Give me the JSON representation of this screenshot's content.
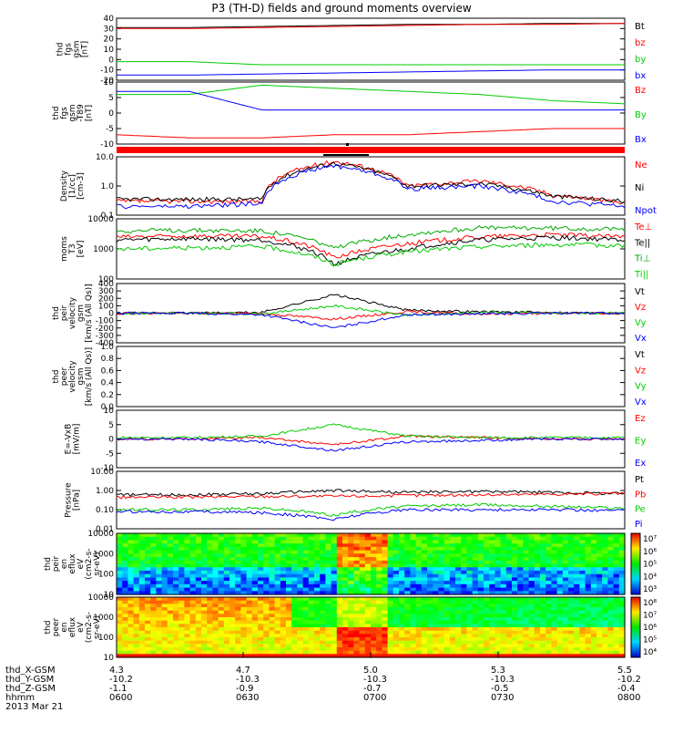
{
  "title": "P3 (TH-D) fields and ground moments overview",
  "colors": {
    "black": "#000000",
    "red": "#ff0000",
    "green": "#00cc00",
    "blue": "#0000ff",
    "darkgreen": "#00aa00"
  },
  "chart_data": [
    {
      "type": "line",
      "ylabel": [
        "thd",
        "fgs",
        "gsm",
        "[nT]"
      ],
      "yticks": [
        "40",
        "30",
        "20",
        "10",
        "0",
        "-10",
        "-20"
      ],
      "legend": [
        "Bt",
        "bz",
        "by",
        "bx"
      ],
      "legend_colors": [
        "#000000",
        "#ff0000",
        "#00cc00",
        "#0000ff"
      ],
      "series": [
        {
          "name": "Bt",
          "values": [
            31,
            31,
            32,
            33,
            34,
            34,
            35,
            35
          ]
        },
        {
          "name": "bz",
          "values": [
            30,
            30,
            31,
            32,
            33,
            34,
            34,
            35
          ]
        },
        {
          "name": "by",
          "values": [
            -2,
            -2,
            -5,
            -5,
            -5,
            -5,
            -5,
            -5
          ]
        },
        {
          "name": "bx",
          "values": [
            -15,
            -15,
            -14,
            -13,
            -12,
            -11,
            -10,
            -10
          ]
        }
      ]
    },
    {
      "type": "line",
      "ylabel": [
        "thd",
        "fgs",
        "gsm",
        "-T89",
        "[nT]"
      ],
      "yticks": [
        "10",
        "5",
        "0",
        "-5",
        "-10"
      ],
      "legend": [
        "Bz",
        "By",
        "Bx"
      ],
      "legend_colors": [
        "#ff0000",
        "#00cc00",
        "#0000ff"
      ],
      "series": [
        {
          "name": "Bz",
          "values": [
            -7,
            -8,
            -8,
            -7,
            -7,
            -6,
            -5,
            -5
          ]
        },
        {
          "name": "By",
          "values": [
            6,
            6,
            9,
            8,
            7,
            6,
            4,
            3
          ]
        },
        {
          "name": "Bx",
          "values": [
            7,
            7,
            1,
            1,
            1,
            1,
            1,
            1
          ]
        }
      ]
    },
    {
      "type": "line",
      "scale": "log",
      "ylabel": [
        "Density",
        "[1/cc]",
        "[cm-3]"
      ],
      "yticks": [
        "10.0",
        "1.0",
        "0.1"
      ],
      "legend": [
        "Ne",
        "Ni",
        "Npot"
      ],
      "legend_colors": [
        "#ff0000",
        "#000000",
        "#0000ff"
      ],
      "series": [
        {
          "name": "Ne",
          "values": [
            0.3,
            0.3,
            0.3,
            7,
            1,
            1.5,
            0.5,
            0.25
          ]
        },
        {
          "name": "Ni",
          "values": [
            0.35,
            0.35,
            0.35,
            6,
            1,
            1.2,
            0.45,
            0.3
          ]
        },
        {
          "name": "Npot",
          "values": [
            0.2,
            0.2,
            0.25,
            5,
            0.8,
            1,
            0.3,
            0.2
          ]
        }
      ]
    },
    {
      "type": "line",
      "scale": "log",
      "ylabel": [
        "moms",
        "T3",
        "[eV]"
      ],
      "yticks": [
        "10000",
        "1000",
        "100"
      ],
      "legend": [
        "Te⊥",
        "Te||",
        "Ti⊥",
        "Ti||"
      ],
      "legend_colors": [
        "#ff0000",
        "#000000",
        "#00aa00",
        "#00cc00"
      ],
      "series": [
        {
          "name": "Te⊥",
          "values": [
            2500,
            2700,
            2600,
            500,
            1500,
            2500,
            3000,
            2500
          ]
        },
        {
          "name": "Te||",
          "values": [
            2000,
            2200,
            2000,
            300,
            1000,
            2000,
            2400,
            2000
          ]
        },
        {
          "name": "Ti⊥",
          "values": [
            4000,
            4200,
            4000,
            1000,
            3000,
            5000,
            5000,
            4500
          ]
        },
        {
          "name": "Ti||",
          "values": [
            1000,
            1100,
            1200,
            300,
            800,
            1200,
            1400,
            1300
          ]
        }
      ]
    },
    {
      "type": "line",
      "ylabel": [
        "thd",
        "peir",
        "velocity",
        "gsm",
        "[km/s (All Qs)]"
      ],
      "yticks": [
        "400",
        "300",
        "200",
        "100",
        "0",
        "-100",
        "-200",
        "-300",
        "-400"
      ],
      "legend": [
        "Vt",
        "Vz",
        "Vy",
        "Vx"
      ],
      "legend_colors": [
        "#000000",
        "#ff0000",
        "#00cc00",
        "#0000ff"
      ],
      "series": [
        {
          "name": "Vt",
          "values": [
            0,
            0,
            10,
            250,
            40,
            20,
            10,
            0
          ]
        },
        {
          "name": "Vz",
          "values": [
            0,
            0,
            -5,
            -80,
            20,
            -10,
            0,
            0
          ]
        },
        {
          "name": "Vy",
          "values": [
            0,
            0,
            -10,
            100,
            -30,
            10,
            0,
            0
          ]
        },
        {
          "name": "Vx",
          "values": [
            0,
            0,
            -20,
            -200,
            -20,
            -10,
            0,
            0
          ]
        }
      ]
    },
    {
      "type": "line",
      "ylabel": [
        "thd",
        "peer",
        "velocity",
        "gsm",
        "[km/s (All Qs)]"
      ],
      "yticks": [
        "1.0",
        "0.8",
        "0.6",
        "0.4",
        "0.2",
        "0.0"
      ],
      "legend": [
        "Vt",
        "Vz",
        "Vy",
        "Vx"
      ],
      "legend_colors": [
        "#000000",
        "#ff0000",
        "#00cc00",
        "#0000ff"
      ],
      "series": []
    },
    {
      "type": "line",
      "ylabel": [
        "E=-VxB",
        "[mV/m]"
      ],
      "yticks": [
        "10",
        "5",
        "0",
        "-5",
        "-10"
      ],
      "legend": [
        "Ez",
        "Ey",
        "Ex"
      ],
      "legend_colors": [
        "#ff0000",
        "#00cc00",
        "#0000ff"
      ],
      "series": [
        {
          "name": "Ez",
          "values": [
            0,
            0,
            0.5,
            -2,
            1,
            0.5,
            0,
            0
          ]
        },
        {
          "name": "Ey",
          "values": [
            0.5,
            0.5,
            1,
            5,
            1,
            0.5,
            0.5,
            0.5
          ]
        },
        {
          "name": "Ex",
          "values": [
            0,
            0,
            -1,
            -4,
            -1,
            -0.5,
            0,
            0
          ]
        }
      ]
    },
    {
      "type": "line",
      "scale": "log",
      "ylabel": [
        "Pressure",
        "[nPa]"
      ],
      "yticks": [
        "10.00",
        "1.00",
        "0.10",
        "0.01"
      ],
      "legend": [
        "Pt",
        "Pb",
        "Pe",
        "Pi"
      ],
      "legend_colors": [
        "#000000",
        "#ff0000",
        "#00cc00",
        "#0000ff"
      ],
      "series": [
        {
          "name": "Pt",
          "values": [
            0.6,
            0.6,
            0.7,
            1,
            0.8,
            0.9,
            0.8,
            0.7
          ]
        },
        {
          "name": "Pb",
          "values": [
            0.45,
            0.45,
            0.5,
            0.5,
            0.55,
            0.6,
            0.65,
            0.7
          ]
        },
        {
          "name": "Pe",
          "values": [
            0.1,
            0.1,
            0.12,
            0.05,
            0.15,
            0.18,
            0.15,
            0.12
          ]
        },
        {
          "name": "Pi",
          "values": [
            0.08,
            0.08,
            0.07,
            0.03,
            0.1,
            0.1,
            0.1,
            0.09
          ]
        }
      ]
    },
    {
      "type": "heatmap",
      "ylabel": [
        "thd",
        "peir",
        "en",
        "eflux",
        "eV",
        "(cm2-s-",
        "sr-eV)"
      ],
      "yticks": [
        "10000",
        "1000",
        "100",
        "10"
      ],
      "colorbar_ticks": [
        "10⁷",
        "10⁶",
        "10⁵",
        "10⁴",
        "10³"
      ]
    },
    {
      "type": "heatmap",
      "ylabel": [
        "thd",
        "peer",
        "en",
        "eflux",
        "eV",
        "(cm2-s-",
        "sr-eV)"
      ],
      "yticks": [
        "10000",
        "1000",
        "100",
        "10"
      ],
      "colorbar_ticks": [
        "10⁸",
        "10⁷",
        "10⁶",
        "10⁵",
        "10⁴"
      ]
    }
  ],
  "footer": {
    "rows": [
      {
        "label": "thd_X-GSM",
        "values": [
          "4.3",
          "4.7",
          "5.0",
          "5.3",
          "5.5"
        ]
      },
      {
        "label": "thd_Y-GSM",
        "values": [
          "-10.2",
          "-10.3",
          "-10.3",
          "-10.3",
          "-10.2"
        ]
      },
      {
        "label": "thd_Z-GSM",
        "values": [
          "-1.1",
          "-0.9",
          "-0.7",
          "-0.5",
          "-0.4"
        ]
      },
      {
        "label": "hhmm",
        "values": [
          "0600",
          "0630",
          "0700",
          "0730",
          "0800"
        ]
      }
    ],
    "date": "2013 Mar 21"
  }
}
